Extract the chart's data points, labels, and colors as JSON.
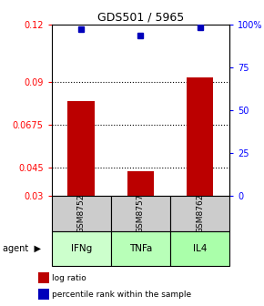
{
  "title": "GDS501 / 5965",
  "samples": [
    "GSM8752",
    "GSM8757",
    "GSM8762"
  ],
  "agents": [
    "IFNg",
    "TNFa",
    "IL4"
  ],
  "log_ratio_values": [
    0.08,
    0.043,
    0.092
  ],
  "log_ratio_base": 0.03,
  "percentile_values": [
    0.975,
    0.935,
    0.985
  ],
  "left_ylim": [
    0.03,
    0.12
  ],
  "left_yticks": [
    0.03,
    0.045,
    0.0675,
    0.09,
    0.12
  ],
  "left_yticklabels": [
    "0.03",
    "0.045",
    "0.0675",
    "0.09",
    "0.12"
  ],
  "right_yticks": [
    0.0,
    0.25,
    0.5,
    0.75,
    1.0
  ],
  "right_yticklabels": [
    "0",
    "25",
    "50",
    "75",
    "100%"
  ],
  "bar_color": "#bb0000",
  "dot_color": "#0000bb",
  "agent_color": "#aaffaa",
  "sample_bg_color": "#cccccc",
  "dotted_levels": [
    0.045,
    0.0675,
    0.09
  ],
  "bar_width": 0.45,
  "x_positions": [
    1,
    2,
    3
  ],
  "legend_bar_label": "log ratio",
  "legend_dot_label": "percentile rank within the sample",
  "background_color": "#ffffff",
  "title_fontsize": 9,
  "tick_fontsize": 7,
  "bar_label_fontsize": 7,
  "sample_fontsize": 6.5,
  "agent_fontsize": 7.5,
  "legend_fontsize": 6.5
}
